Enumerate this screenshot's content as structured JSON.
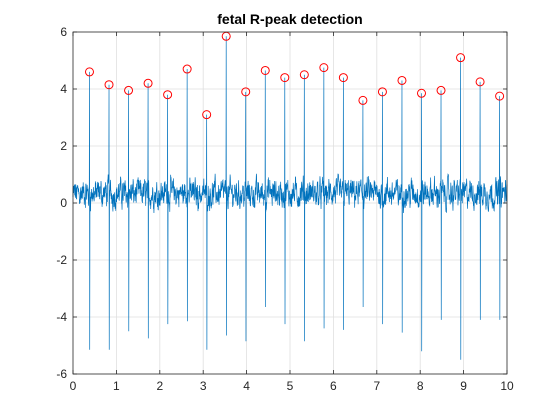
{
  "chart_data": {
    "type": "line",
    "title": "fetal R-peak detection",
    "xlabel": "",
    "ylabel": "",
    "xlim": [
      0,
      10
    ],
    "ylim": [
      -6,
      6
    ],
    "xticks": [
      0,
      1,
      2,
      3,
      4,
      5,
      6,
      7,
      8,
      9,
      10
    ],
    "yticks": [
      -6,
      -4,
      -2,
      0,
      2,
      4,
      6
    ],
    "grid": true,
    "series": [
      {
        "style": "line",
        "color": "#0072BD",
        "description": "noisy fetal ECG signal with sharp R spikes",
        "baseline_noise": {
          "min": -1.0,
          "max": 1.3
        },
        "spikes": [
          {
            "x": 0.38,
            "peak": 4.6,
            "trough": -5.15
          },
          {
            "x": 0.83,
            "peak": 4.15,
            "trough": -5.15
          },
          {
            "x": 1.28,
            "peak": 3.95,
            "trough": -4.5
          },
          {
            "x": 1.73,
            "peak": 4.2,
            "trough": -4.75
          },
          {
            "x": 2.18,
            "peak": 3.8,
            "trough": -4.25
          },
          {
            "x": 2.63,
            "peak": 4.7,
            "trough": -4.15
          },
          {
            "x": 3.08,
            "peak": 3.1,
            "trough": -5.15
          },
          {
            "x": 3.53,
            "peak": 5.85,
            "trough": -4.65
          },
          {
            "x": 3.98,
            "peak": 3.9,
            "trough": -4.85
          },
          {
            "x": 4.43,
            "peak": 4.65,
            "trough": -3.65
          },
          {
            "x": 4.88,
            "peak": 4.4,
            "trough": -4.25
          },
          {
            "x": 5.33,
            "peak": 4.5,
            "trough": -4.85
          },
          {
            "x": 5.78,
            "peak": 4.75,
            "trough": -4.4
          },
          {
            "x": 6.23,
            "peak": 4.4,
            "trough": -4.45
          },
          {
            "x": 6.68,
            "peak": 3.6,
            "trough": -3.65
          },
          {
            "x": 7.13,
            "peak": 3.9,
            "trough": -4.25
          },
          {
            "x": 7.58,
            "peak": 4.3,
            "trough": -4.55
          },
          {
            "x": 8.03,
            "peak": 3.85,
            "trough": -5.2
          },
          {
            "x": 8.48,
            "peak": 3.95,
            "trough": -4.1
          },
          {
            "x": 8.93,
            "peak": 5.1,
            "trough": -5.5
          },
          {
            "x": 9.38,
            "peak": 4.25,
            "trough": -4.1
          },
          {
            "x": 9.83,
            "peak": 3.75,
            "trough": -4.1
          }
        ]
      },
      {
        "style": "markers",
        "marker": "circle-open",
        "color": "#FF0000",
        "x": [
          0.38,
          0.83,
          1.28,
          1.73,
          2.18,
          2.63,
          3.08,
          3.53,
          3.98,
          4.43,
          4.88,
          5.33,
          5.78,
          6.23,
          6.68,
          7.13,
          7.58,
          8.03,
          8.48,
          8.93,
          9.38,
          9.83
        ],
        "y": [
          4.6,
          4.15,
          3.95,
          4.2,
          3.8,
          4.7,
          3.1,
          5.85,
          3.9,
          4.65,
          4.4,
          4.5,
          4.75,
          4.4,
          3.6,
          3.9,
          4.3,
          3.85,
          3.95,
          5.1,
          4.25,
          3.75
        ]
      }
    ]
  }
}
